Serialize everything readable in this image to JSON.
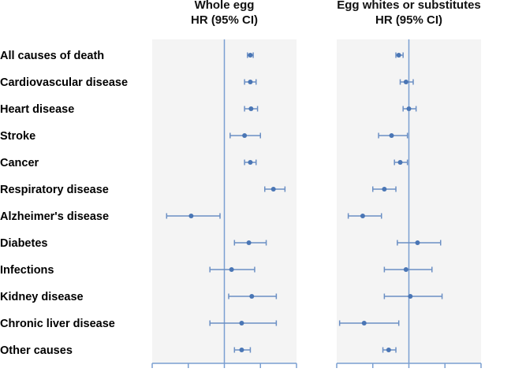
{
  "chart_data": [
    {
      "type": "forest",
      "title_line1": "Whole egg",
      "title_line2": "HR (95% CI)",
      "reference_value": 1,
      "xlim": [
        0.5,
        1.5
      ],
      "ticks": [
        0.5,
        0.75,
        1,
        1.25,
        1.5
      ],
      "tick_labels_shown": false,
      "grid": false,
      "categories": [
        "All causes of death",
        "Cardiovascular disease",
        " Heart disease",
        " Stroke",
        "Cancer",
        "Respiratory disease",
        "Alzheimer's disease",
        "Diabetes",
        "Infections",
        "Kidney disease",
        "Chronic liver disease",
        "Other causes"
      ],
      "hr": [
        1.18,
        1.18,
        1.185,
        1.14,
        1.18,
        1.34,
        0.77,
        1.17,
        1.05,
        1.19,
        1.12,
        1.12
      ],
      "lower": [
        1.16,
        1.14,
        1.14,
        1.04,
        1.14,
        1.28,
        0.6,
        1.07,
        0.9,
        1.03,
        0.9,
        1.07
      ],
      "upper": [
        1.2,
        1.22,
        1.23,
        1.25,
        1.22,
        1.42,
        0.97,
        1.29,
        1.21,
        1.36,
        1.36,
        1.18
      ]
    },
    {
      "type": "forest",
      "title_line1": "Egg whites or substitutes",
      "title_line2": "HR (95% CI)",
      "reference_value": 1,
      "xlim": [
        0.5,
        1.5
      ],
      "ticks": [
        0.5,
        0.75,
        1,
        1.25,
        1.5
      ],
      "tick_labels_shown": false,
      "grid": false,
      "hr": [
        0.93,
        0.98,
        1.0,
        0.88,
        0.94,
        0.83,
        0.68,
        1.06,
        0.98,
        1.01,
        0.69,
        0.86
      ],
      "lower": [
        0.91,
        0.94,
        0.96,
        0.79,
        0.9,
        0.75,
        0.58,
        0.92,
        0.83,
        0.83,
        0.52,
        0.82
      ],
      "upper": [
        0.96,
        1.03,
        1.05,
        0.99,
        0.99,
        0.91,
        0.81,
        1.22,
        1.16,
        1.23,
        0.93,
        0.91
      ]
    }
  ],
  "colors": {
    "marker": "#4a76b5",
    "whisker": "#6b8fc4",
    "reference_line": "#7a9fd1",
    "panel_bg": "#f4f4f4",
    "axis": "#7a9fd1"
  }
}
